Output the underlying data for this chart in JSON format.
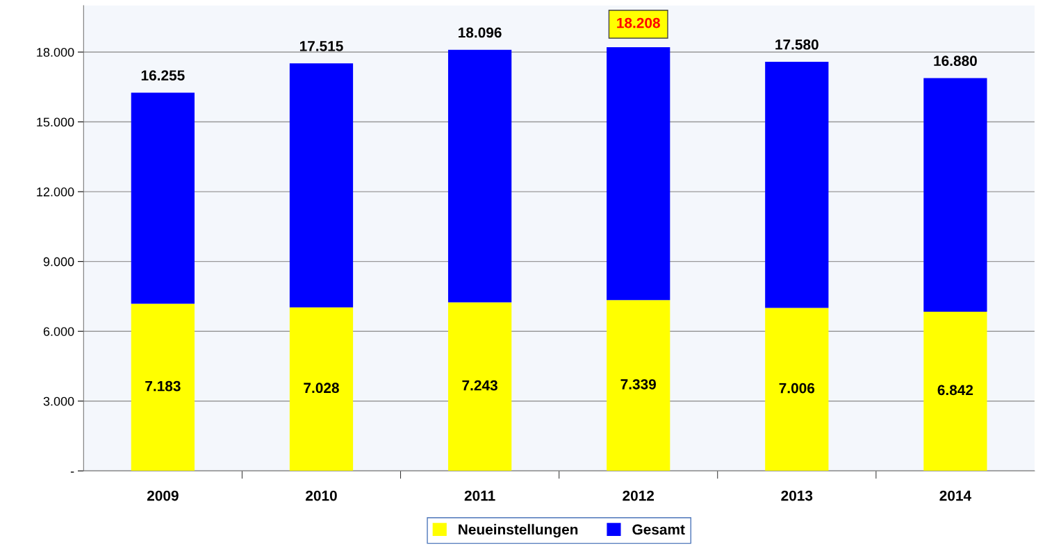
{
  "chart_data": {
    "type": "bar",
    "stacked": true,
    "categories": [
      "2009",
      "2010",
      "2011",
      "2012",
      "2013",
      "2014"
    ],
    "series": [
      {
        "name": "Neueinstellungen",
        "color": "#ffff00",
        "values": [
          7183,
          7028,
          7243,
          7339,
          7006,
          6842
        ],
        "value_labels": [
          "7.183",
          "7.028",
          "7.243",
          "7.339",
          "7.006",
          "6.842"
        ]
      },
      {
        "name": "Gesamt",
        "color": "#0000ff",
        "values": [
          9072,
          10487,
          10853,
          10869,
          10574,
          10038
        ]
      }
    ],
    "totals": [
      "16.255",
      "17.515",
      "18.096",
      null,
      "17.580",
      "16.880"
    ],
    "annotations": [
      {
        "text": "18.208",
        "x": "2012",
        "y": 18208
      }
    ],
    "ylim": [
      0,
      20000
    ],
    "yticks": [
      {
        "value": 0,
        "label": "-"
      },
      {
        "value": 3000,
        "label": "3.000"
      },
      {
        "value": 6000,
        "label": "6.000"
      },
      {
        "value": 9000,
        "label": "9.000"
      },
      {
        "value": 12000,
        "label": "12.000"
      },
      {
        "value": 15000,
        "label": "15.000"
      },
      {
        "value": 18000,
        "label": "18.000"
      }
    ],
    "grid": "y",
    "legend": "bottom"
  }
}
